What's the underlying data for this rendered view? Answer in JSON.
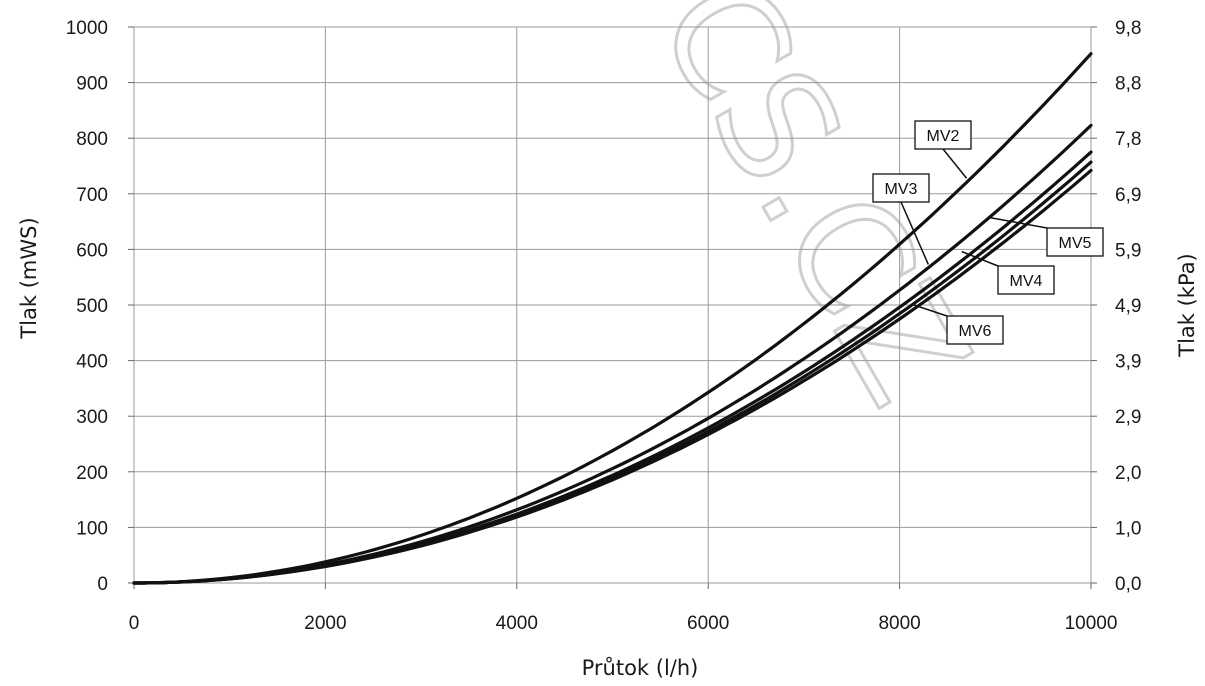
{
  "chart_data": {
    "type": "line",
    "title": "",
    "xlabel": "Průtok (l/h)",
    "ylabel": "Tlak (mWS)",
    "y2label": "Tlak (kPa)",
    "xlim": [
      0,
      10000
    ],
    "ylim": [
      0,
      1000
    ],
    "grid": true,
    "x_ticks": [
      "0",
      "2000",
      "4000",
      "6000",
      "8000",
      "10000"
    ],
    "y_ticks": [
      "0",
      "100",
      "200",
      "300",
      "400",
      "500",
      "600",
      "700",
      "800",
      "900",
      "1000"
    ],
    "y2_ticks": [
      "0,0",
      "1,0",
      "2,0",
      "2,9",
      "3,9",
      "4,9",
      "5,9",
      "6,9",
      "7,8",
      "8,8",
      "9,8"
    ],
    "line_color": "#111111",
    "series": [
      {
        "name": "MV2",
        "x": [
          0,
          2000,
          4000,
          6000,
          8000,
          10000
        ],
        "y": [
          0,
          38,
          152,
          343,
          610,
          952
        ]
      },
      {
        "name": "MV3",
        "x": [
          0,
          2000,
          4000,
          6000,
          8000,
          10000
        ],
        "y": [
          0,
          33,
          132,
          297,
          528,
          823
        ]
      },
      {
        "name": "MV5",
        "x": [
          0,
          2000,
          4000,
          6000,
          8000,
          10000
        ],
        "y": [
          0,
          31,
          124,
          279,
          496,
          775
        ]
      },
      {
        "name": "MV4",
        "x": [
          0,
          2000,
          4000,
          6000,
          8000,
          10000
        ],
        "y": [
          0,
          30,
          121,
          272,
          484,
          757
        ]
      },
      {
        "name": "MV6",
        "x": [
          0,
          2000,
          4000,
          6000,
          8000,
          10000
        ],
        "y": [
          0,
          30,
          119,
          267,
          475,
          742
        ]
      }
    ],
    "annotations": [
      {
        "series": "MV2",
        "text": "MV2",
        "anchor_x": 8700,
        "anchor_y": 728
      },
      {
        "series": "MV3",
        "text": "MV3",
        "anchor_x": 8300,
        "anchor_y": 573
      },
      {
        "series": "MV5",
        "text": "MV5",
        "anchor_x": 8950,
        "anchor_y": 657
      },
      {
        "series": "MV4",
        "text": "MV4",
        "anchor_x": 8650,
        "anchor_y": 596
      },
      {
        "series": "MV6",
        "text": "MV6",
        "anchor_x": 8150,
        "anchor_y": 500
      }
    ]
  },
  "watermark": {
    "text": "CS.CZ"
  }
}
